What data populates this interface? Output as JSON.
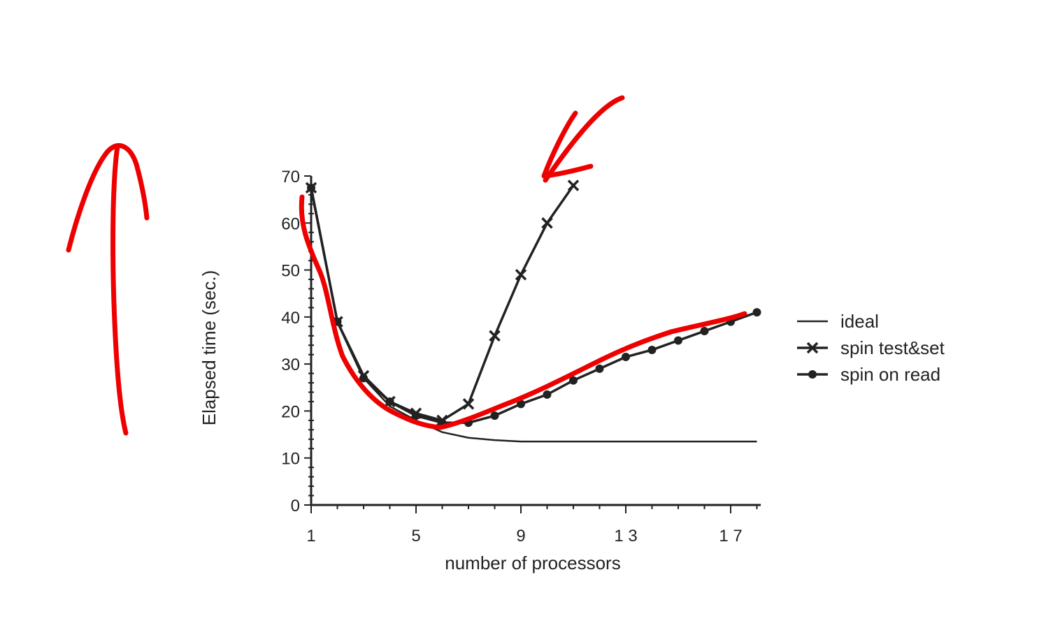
{
  "chart_data": {
    "type": "line",
    "xlabel": "number of processors",
    "ylabel": "Elapsed time (sec.)",
    "xlim": [
      1,
      18
    ],
    "ylim": [
      0,
      70
    ],
    "x_ticks": [
      1,
      5,
      9,
      13,
      17
    ],
    "x_tick_labels": [
      "1",
      "5",
      "9",
      "1 3",
      "1 7"
    ],
    "y_ticks": [
      0,
      10,
      20,
      30,
      40,
      50,
      60,
      70
    ],
    "y_tick_labels": [
      "0",
      "10",
      "20",
      "30",
      "40",
      "50",
      "60",
      "70"
    ],
    "legend_position": "right",
    "grid": false,
    "series": [
      {
        "name": "ideal",
        "marker": "none",
        "x": [
          1,
          2,
          3,
          4,
          5,
          6,
          7,
          8,
          9,
          10,
          11,
          12,
          13,
          14,
          15,
          16,
          17,
          18
        ],
        "values": [
          67,
          39,
          27,
          21,
          18,
          15.5,
          14.3,
          13.8,
          13.5,
          13.5,
          13.5,
          13.5,
          13.5,
          13.5,
          13.5,
          13.5,
          13.5,
          13.5
        ]
      },
      {
        "name": "spin test&set",
        "marker": "x",
        "x": [
          1,
          2,
          3,
          4,
          5,
          6,
          7,
          8,
          9,
          10,
          11
        ],
        "values": [
          67.5,
          39,
          27.5,
          22,
          19.5,
          18,
          21.5,
          36,
          49,
          60,
          68
        ]
      },
      {
        "name": "spin on read",
        "marker": "diamond",
        "x": [
          1,
          2,
          3,
          4,
          5,
          6,
          7,
          8,
          9,
          10,
          11,
          12,
          13,
          14,
          15,
          16,
          17,
          18
        ],
        "values": [
          67.5,
          39,
          27,
          22,
          19,
          17.5,
          17.5,
          19,
          21.5,
          23.5,
          26.5,
          29,
          31.5,
          33,
          35,
          37,
          39,
          41
        ]
      }
    ]
  },
  "annotations": {
    "color": "#ee0000",
    "description_items": [
      "up-arrow-annotation",
      "down-left-arrow-annotation",
      "highlight-curve-annotation"
    ]
  }
}
